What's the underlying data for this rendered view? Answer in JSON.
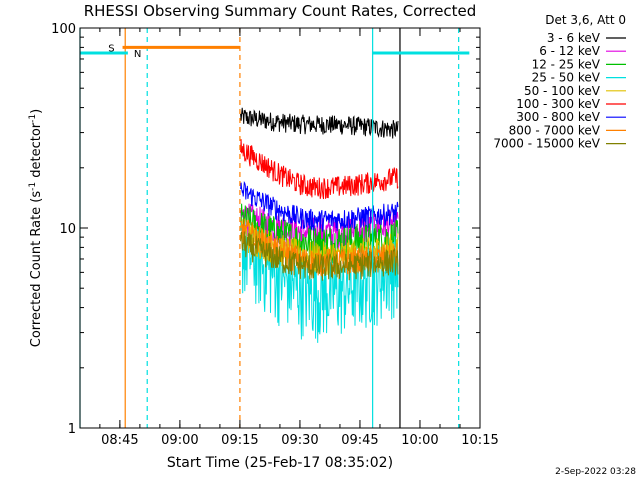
{
  "chart_data": {
    "type": "line",
    "title": "RHESSI Observing Summary Count Rates, Corrected",
    "xlabel": "Start Time (25-Feb-17 08:35:02)",
    "ylabel": "Corrected Count Rate (s",
    "ylabel_sup": "-1",
    "ylabel_mid": " detector",
    "ylabel_sup2": "-1",
    "ylabel_end": ")",
    "y_scale": "log",
    "ylim": [
      1,
      100
    ],
    "xlim": [
      "08:35:02",
      "10:15:00"
    ],
    "x_ticks": [
      "08:45",
      "09:00",
      "09:15",
      "09:30",
      "09:45",
      "10:00",
      "10:15"
    ],
    "y_ticks": [
      "1",
      "10",
      "100"
    ],
    "grid": false,
    "legend_title": "Det 3,6, Att 0",
    "legend_position": "right",
    "date_stamp": "2-Sep-2022 03:28",
    "series": [
      {
        "name": "3 - 6 keV",
        "color": "#000000",
        "level_start": 36,
        "level_mid": 33,
        "level_end": 31,
        "noise": 0.07
      },
      {
        "name": "6 - 12 keV",
        "color": "#e000e0",
        "level_start": 11.5,
        "level_mid": 9.5,
        "level_end": 10.5,
        "noise": 0.12
      },
      {
        "name": "12 - 25 keV",
        "color": "#00c000",
        "level_start": 11,
        "level_mid": 8.5,
        "level_end": 9,
        "noise": 0.14
      },
      {
        "name": "25 - 50 keV",
        "color": "#00e0e0",
        "level_start": 8,
        "level_mid": 4.8,
        "level_end": 6.5,
        "noise": 0.28
      },
      {
        "name": "50 - 100 keV",
        "color": "#e0c000",
        "level_start": 9.5,
        "level_mid": 7.2,
        "level_end": 8,
        "noise": 0.12
      },
      {
        "name": "100 - 300 keV",
        "color": "#ff0000",
        "level_start": 25,
        "level_mid": 16,
        "level_end": 18,
        "noise": 0.08
      },
      {
        "name": "300 - 800 keV",
        "color": "#0000ff",
        "level_start": 15.5,
        "level_mid": 11,
        "level_end": 12,
        "noise": 0.08
      },
      {
        "name": "800 - 7000 keV",
        "color": "#ff8000",
        "level_start": 10,
        "level_mid": 6.8,
        "level_end": 7.3,
        "noise": 0.1
      },
      {
        "name": "7000 - 15000 keV",
        "color": "#808000",
        "level_start": 8.5,
        "level_mid": 6.4,
        "level_end": 6.9,
        "noise": 0.1
      }
    ],
    "data_window": {
      "start": "09:15:10",
      "end": "09:54:30"
    },
    "markers": {
      "saa": {
        "label": "S",
        "color": "#ff8000",
        "start": "08:45:40",
        "end": "09:15:00",
        "level": 80
      },
      "night": {
        "label": "N",
        "color": "#00e0e0",
        "segments": [
          [
            "08:35:02",
            "08:47:00"
          ],
          [
            "09:48:00",
            "10:12:20"
          ]
        ],
        "level": 75
      },
      "vertical_lines": [
        {
          "time": "08:35:02",
          "color": "#00e0e0",
          "style": "solid"
        },
        {
          "time": "08:46:20",
          "color": "#ff8000",
          "style": "solid"
        },
        {
          "time": "08:51:50",
          "color": "#00e0e0",
          "style": "dashed"
        },
        {
          "time": "09:15:00",
          "color": "#ff8000",
          "style": "dashed"
        },
        {
          "time": "09:48:10",
          "color": "#00e0e0",
          "style": "solid"
        },
        {
          "time": "09:55:00",
          "color": "#000000",
          "style": "solid"
        },
        {
          "time": "10:09:40",
          "color": "#00e0e0",
          "style": "dashed"
        }
      ]
    }
  }
}
